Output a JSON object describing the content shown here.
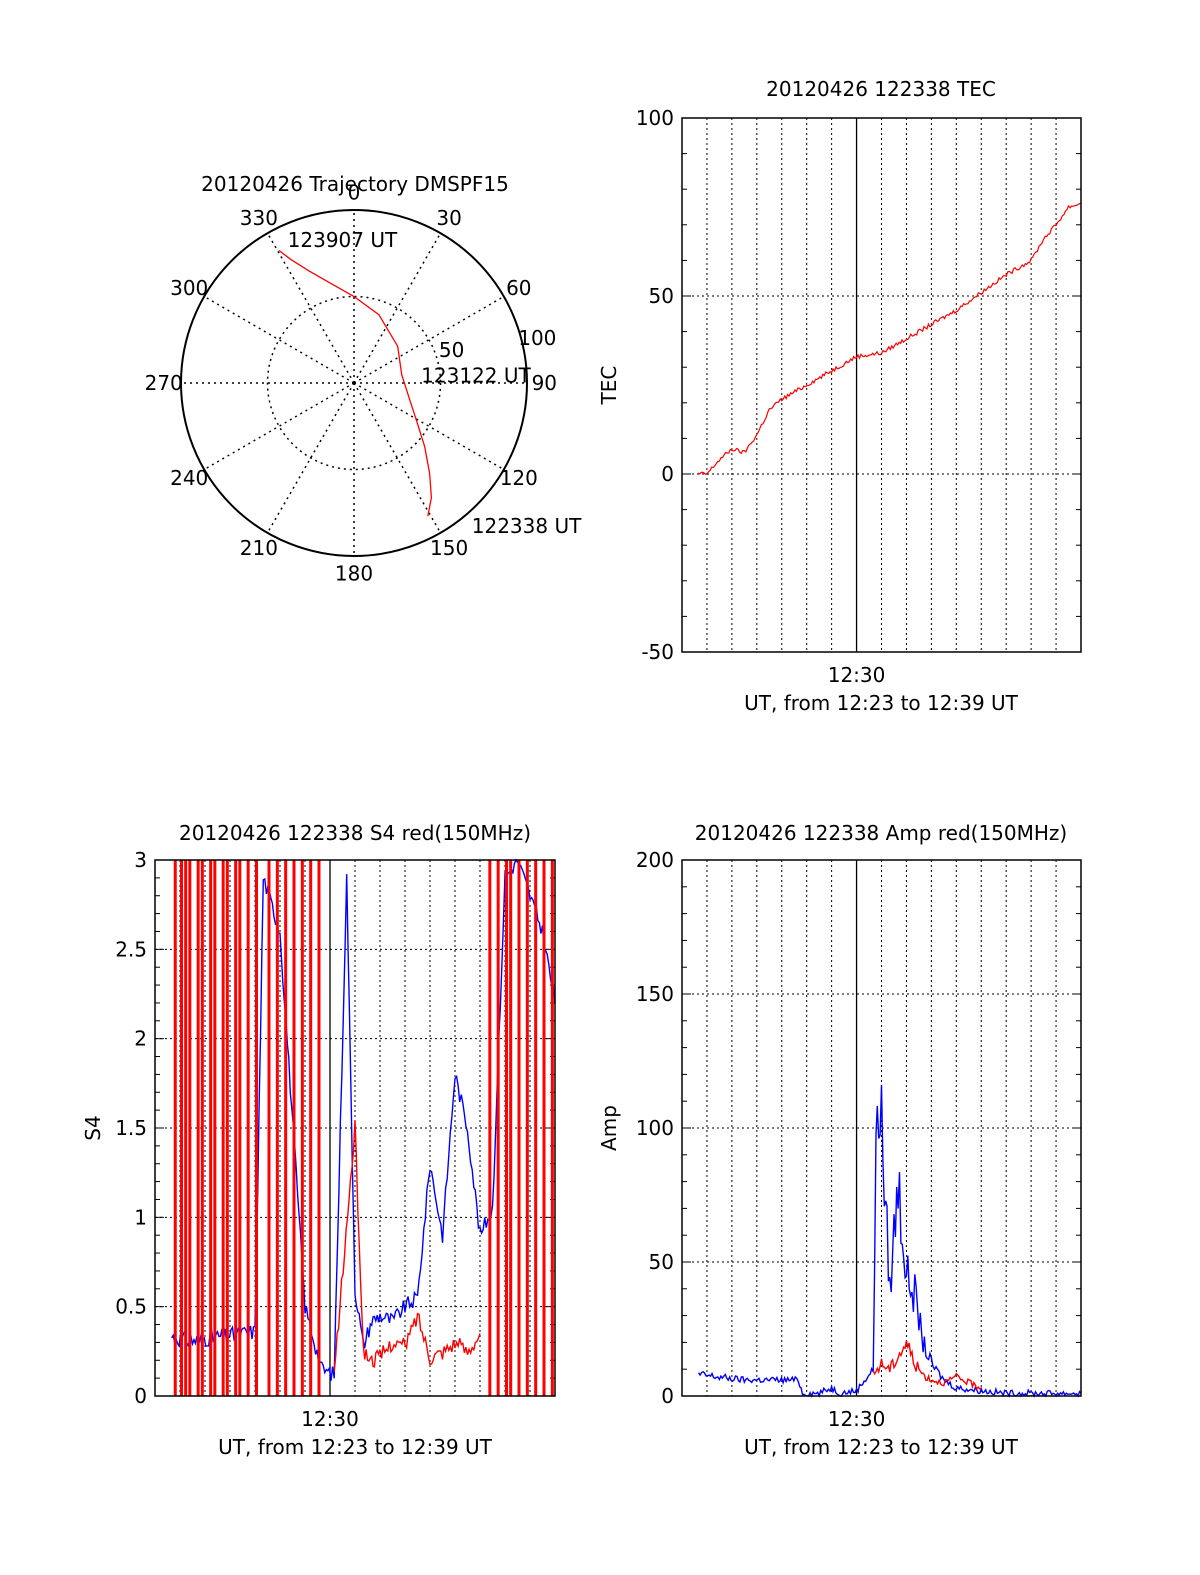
{
  "colors": {
    "axis": "#000000",
    "red_series": "#ff0000",
    "blue_series": "#0000ff",
    "grid": "#000000",
    "background": "#ffffff"
  },
  "chart_data": [
    {
      "type": "polar",
      "id": "trajectory",
      "title": "20120426 Trajectory DMSPF15",
      "angle_labels": [
        "0",
        "30",
        "60",
        "90",
        "120",
        "150",
        "180",
        "210",
        "240",
        "270",
        "300",
        "330"
      ],
      "radius_labels": [
        "50",
        "100"
      ],
      "radius_max": 100,
      "rings": [
        50
      ],
      "track": {
        "color": "red",
        "points": [
          [
            330.5,
            88
          ],
          [
            333,
            80
          ],
          [
            338,
            70
          ],
          [
            346,
            60
          ],
          [
            0,
            50
          ],
          [
            20,
            42
          ],
          [
            50,
            33
          ],
          [
            80,
            28
          ],
          [
            105,
            33
          ],
          [
            122,
            43
          ],
          [
            132,
            55
          ],
          [
            140,
            68
          ],
          [
            146,
            80
          ],
          [
            151,
            88
          ]
        ]
      },
      "annotations": [
        {
          "text": "123907 UT",
          "angle": 335,
          "r": 88
        },
        {
          "text": "123122 UT",
          "angle": 88,
          "r": 40
        },
        {
          "text": "122338 UT",
          "angle": 141,
          "r": 110
        }
      ]
    },
    {
      "type": "line",
      "id": "tec",
      "title": "20120426 122338 TEC",
      "xlabel": "UT, from 12:23 to 12:39 UT",
      "ylabel": "TEC",
      "xlim": [
        "12:23",
        "12:39"
      ],
      "ylim": [
        -50,
        100
      ],
      "yticks": [
        -50,
        0,
        50,
        100
      ],
      "xtick_labels": [
        {
          "x": "12:30",
          "label": "12:30"
        }
      ],
      "grid": true,
      "series": [
        {
          "color": "red",
          "x": [
            "12:23:38",
            "12:24:00",
            "12:24:30",
            "12:25:00",
            "12:25:30",
            "12:26:00",
            "12:26:30",
            "12:27:00",
            "12:28:00",
            "12:29:00",
            "12:30:00",
            "12:31:00",
            "12:32:00",
            "12:33:00",
            "12:34:00",
            "12:35:00",
            "12:36:00",
            "12:37:00",
            "12:37:30",
            "12:38:00",
            "12:38:30",
            "12:39:00"
          ],
          "y": [
            0,
            0,
            4,
            7,
            6,
            11,
            18,
            21,
            25,
            29,
            33,
            34,
            38,
            42,
            46,
            51,
            56,
            60,
            66,
            70,
            75,
            76
          ]
        }
      ]
    },
    {
      "type": "line",
      "id": "s4",
      "title": "20120426 122338 S4 red(150MHz)",
      "xlabel": "UT, from 12:23 to 12:39 UT",
      "ylabel": "S4",
      "xlim": [
        "12:23",
        "12:39"
      ],
      "ylim": [
        0,
        3
      ],
      "yticks": [
        0,
        0.5,
        1,
        1.5,
        2,
        2.5,
        3
      ],
      "xtick_labels": [
        {
          "x": "12:30",
          "label": "12:30"
        }
      ],
      "grid": true,
      "series": [
        {
          "color": "blue",
          "x": [
            "12:23:40",
            "12:24:30",
            "12:25:30",
            "12:27:00",
            "12:27:20",
            "12:28:00",
            "12:29:00",
            "12:29:40",
            "12:30:10",
            "12:30:40",
            "12:31:00",
            "12:31:20",
            "12:31:40",
            "12:32:00",
            "12:32:30",
            "12:33:00",
            "12:33:30",
            "12:34:00",
            "12:34:30",
            "12:35:00",
            "12:35:30",
            "12:36:00",
            "12:36:30",
            "12:37:00",
            "12:37:30",
            "12:38:00",
            "12:38:30",
            "12:39:00"
          ],
          "y": [
            0.33,
            0.31,
            0.33,
            0.36,
            2.9,
            2.6,
            0.5,
            0.15,
            0.12,
            2.9,
            0.6,
            0.28,
            0.42,
            0.45,
            0.42,
            0.5,
            0.55,
            1.3,
            0.9,
            1.8,
            1.5,
            0.9,
            1.05,
            2.9,
            3.0,
            2.8,
            2.6,
            2.2
          ]
        },
        {
          "color": "red",
          "x": [
            "12:30:10",
            "12:31:00",
            "12:31:20",
            "12:31:40",
            "12:32:00",
            "12:32:30",
            "12:33:00",
            "12:33:30",
            "12:34:00",
            "12:34:30",
            "12:35:00",
            "12:35:30",
            "12:36:00"
          ],
          "y": [
            0.12,
            1.5,
            0.25,
            0.2,
            0.22,
            0.3,
            0.28,
            0.45,
            0.22,
            0.25,
            0.3,
            0.25,
            0.35
          ]
        },
        {
          "color": "red",
          "spikes_x": [
            "12:23:45",
            "12:24:00",
            "12:24:10",
            "12:24:20",
            "12:24:40",
            "12:24:50",
            "12:25:10",
            "12:25:20",
            "12:25:40",
            "12:25:50",
            "12:26:10",
            "12:26:20",
            "12:26:40",
            "12:27:00",
            "12:27:30",
            "12:27:50",
            "12:28:10",
            "12:28:30",
            "12:28:50",
            "12:29:10",
            "12:29:30",
            "12:36:20",
            "12:36:40",
            "12:37:00",
            "12:37:10",
            "12:37:30",
            "12:37:50",
            "12:38:10",
            "12:38:30",
            "12:38:50"
          ]
        }
      ]
    },
    {
      "type": "line",
      "id": "amp",
      "title": "20120426 122338 Amp red(150MHz)",
      "xlabel": "UT, from 12:23 to 12:39 UT",
      "ylabel": "Amp",
      "xlim": [
        "12:23",
        "12:39"
      ],
      "ylim": [
        0,
        200
      ],
      "yticks": [
        0,
        50,
        100,
        150,
        200
      ],
      "xtick_labels": [
        {
          "x": "12:30",
          "label": "12:30"
        }
      ],
      "grid": true,
      "series": [
        {
          "color": "blue",
          "x": [
            "12:23:40",
            "12:24:30",
            "12:25:30",
            "12:26:30",
            "12:27:40",
            "12:27:50",
            "12:28:30",
            "12:29:00",
            "12:29:20",
            "12:30:00",
            "12:30:40",
            "12:30:50",
            "12:31:00",
            "12:31:10",
            "12:31:20",
            "12:31:40",
            "12:32:00",
            "12:32:20",
            "12:32:40",
            "12:33:00",
            "12:33:30",
            "12:34:00",
            "12:35:00",
            "12:36:00",
            "12:37:00",
            "12:38:00",
            "12:39:00"
          ],
          "y": [
            8,
            7,
            6,
            6,
            6,
            1,
            1,
            3,
            1,
            2,
            10,
            120,
            100,
            70,
            40,
            80,
            45,
            38,
            20,
            12,
            6,
            3,
            2,
            1,
            1,
            1,
            1
          ]
        },
        {
          "color": "red",
          "x": [
            "12:30:40",
            "12:31:00",
            "12:31:20",
            "12:31:40",
            "12:32:00",
            "12:32:20",
            "12:32:40",
            "12:33:00",
            "12:33:30",
            "12:34:00",
            "12:35:00"
          ],
          "y": [
            8,
            12,
            10,
            15,
            20,
            12,
            8,
            6,
            5,
            7,
            3
          ]
        }
      ]
    }
  ]
}
